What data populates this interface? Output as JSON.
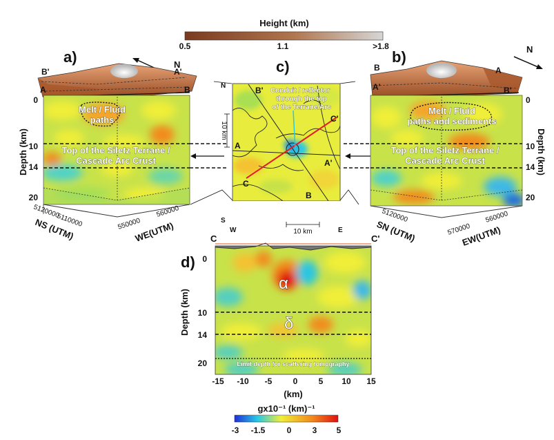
{
  "height_bar": {
    "title": "Height (km)",
    "ticks": [
      "0.5",
      "1.1",
      ">1.8"
    ],
    "colors": [
      "#7a3a1e",
      "#b0764f",
      "#d6d6d6"
    ]
  },
  "velocity_bar": {
    "title": "gx10⁻¹ (km)⁻¹",
    "ticks": [
      "-3",
      "-1.5",
      "0",
      "3",
      "5"
    ],
    "colors": [
      "#1e2fd8",
      "#28c8e6",
      "#f0ee38",
      "#f28a1c",
      "#e01010"
    ]
  },
  "panel_a": {
    "label": "a)",
    "north": "N",
    "corners": [
      "B'",
      "A'",
      "A",
      "B"
    ],
    "depth_label": "Depth (km)",
    "depth_ticks": [
      "0",
      "10",
      "14",
      "20"
    ],
    "melt_label": "Melt / Fluid paths",
    "melt_lines": [
      "Melt / Fluid",
      "paths"
    ],
    "layer_lines": [
      "Top of the Siletz Terrane /",
      "Cascade Arc Crust"
    ],
    "ns_ticks": [
      "5120000",
      "5110000"
    ],
    "we_ticks": [
      "550000",
      "560000"
    ],
    "ns_label": "NS (UTM)",
    "we_label": "WE(UTM)"
  },
  "panel_b": {
    "label": "b)",
    "north": "N",
    "corners": [
      "B",
      "A",
      "A'",
      "B'"
    ],
    "depth_label": "Depth (km)",
    "depth_ticks": [
      "0",
      "10",
      "14",
      "20"
    ],
    "melt_lines": [
      "Melt / Fluid",
      "paths and sediments"
    ],
    "layer_lines": [
      "Top of the Siletz Terrane /",
      "Cascade Arc Crust"
    ],
    "sn_ticks": [
      "5120000"
    ],
    "ew_ticks": [
      "570000",
      "560000"
    ],
    "sn_label": "SN (UTM)",
    "ew_label": "EW(UTM)"
  },
  "panel_c": {
    "label": "c)",
    "title_lines": [
      "Conduit / reflector",
      "through the top",
      "of the Terrane/Arc"
    ],
    "profile_labels": [
      "B'",
      "C'",
      "A",
      "A'",
      "C",
      "B"
    ],
    "corners": [
      "N",
      "S",
      "W",
      "E"
    ],
    "vscale": "10 km",
    "hscale": "10 km"
  },
  "panel_d": {
    "label": "d)",
    "ends": [
      "C",
      "C'"
    ],
    "depth_label": "Depth (km)",
    "depth_ticks": [
      "0",
      "10",
      "14",
      "20"
    ],
    "x_ticks": [
      "-15",
      "-10",
      "-5",
      "0",
      "5",
      "10",
      "15"
    ],
    "x_label": "(km)",
    "alpha": "α",
    "delta": "δ",
    "limit_text": "Limit depth for scattering tomography"
  }
}
